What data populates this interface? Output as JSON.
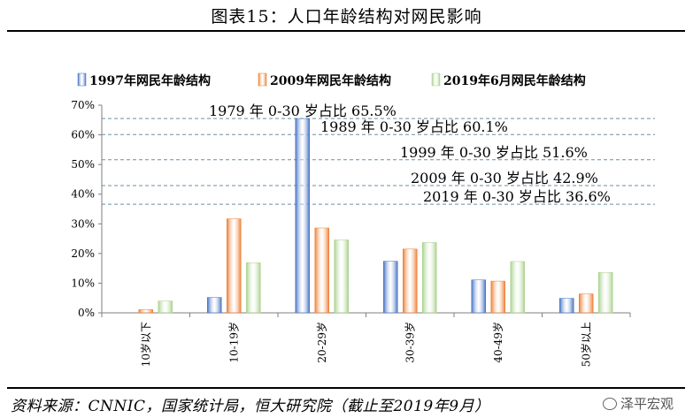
{
  "header": {
    "title": "图表15：人口年龄结构对网民影响"
  },
  "source": "资料来源：CNNIC，国家统计局，恒大研究院（截止至2019年9月）",
  "watermark": {
    "label": "泽平宏观",
    "icon": "wechat-icon"
  },
  "chart_data": {
    "type": "bar",
    "title": "",
    "xlabel": "",
    "ylabel": "",
    "categories": [
      "10岁以下",
      "10-19岁",
      "20-29岁",
      "30-39岁",
      "40-49岁",
      "50岁以上"
    ],
    "series": [
      {
        "name": "1997年网民年龄结构",
        "values": [
          0,
          5.2,
          65.5,
          17.4,
          11.1,
          4.9
        ],
        "color": "#4472C4"
      },
      {
        "name": "2009年网民年龄结构",
        "values": [
          1.1,
          31.7,
          28.6,
          21.5,
          10.7,
          6.4
        ],
        "color": "#ED7D31"
      },
      {
        "name": "2019年6月网民年龄结构",
        "values": [
          4.0,
          16.9,
          24.6,
          23.7,
          17.3,
          13.6
        ],
        "color": "#A9D18E"
      }
    ],
    "ylim": [
      0,
      70
    ],
    "yticks": [
      "0%",
      "10%",
      "20%",
      "30%",
      "40%",
      "50%",
      "60%",
      "70%"
    ],
    "legend_position": "top",
    "grid": false,
    "reference_lines": [
      {
        "value": 65.5,
        "label": "1979 年 0-30 岁占比 65.5%"
      },
      {
        "value": 60.1,
        "label": "1989 年 0-30 岁占比 60.1%"
      },
      {
        "value": 51.6,
        "label": "1999 年 0-30 岁占比 51.6%"
      },
      {
        "value": 42.9,
        "label": "2009 年 0-30 岁占比 42.9%"
      },
      {
        "value": 36.6,
        "label": "2019 年 0-30 岁占比 36.6%"
      }
    ]
  }
}
